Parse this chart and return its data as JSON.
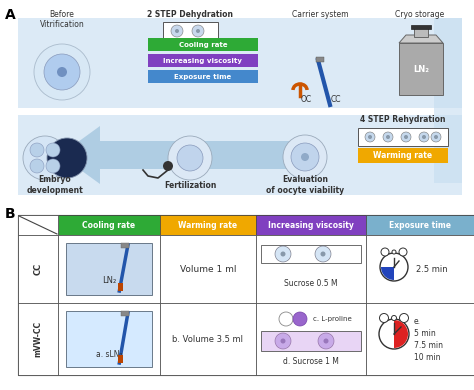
{
  "fig_width": 4.74,
  "fig_height": 3.9,
  "dpi": 100,
  "bg_color": "#ffffff",
  "panel_A_label": "A",
  "panel_B_label": "B",
  "arrow_bg": "#c5ddf0",
  "step_colors": {
    "cooling_rate": "#2eaa36",
    "increasing_viscosity": "#8040c0",
    "exposure_time": "#4488cc",
    "warming_rate": "#f0a800"
  },
  "step_labels": [
    "Cooling rate",
    "Increasing viscosity",
    "Exposure time"
  ],
  "warming_label": "Warming rate",
  "table_header_colors": [
    "#2eaa36",
    "#f0a800",
    "#8040c0",
    "#7ab0cc"
  ],
  "table_headers": [
    "Cooling rate",
    "Warming rate",
    "Increasing viscosity",
    "Exposure time"
  ],
  "ln2_label": "LN₂",
  "sln2_label": "a. sLN₂",
  "oocyte_outer": "#d8e8f5",
  "oocyte_inner": "#b0ccee",
  "dark_blue": "#1a2a50",
  "text_color": "#222222",
  "straw_blue": "#2255aa",
  "straw_orange": "#cc5500"
}
